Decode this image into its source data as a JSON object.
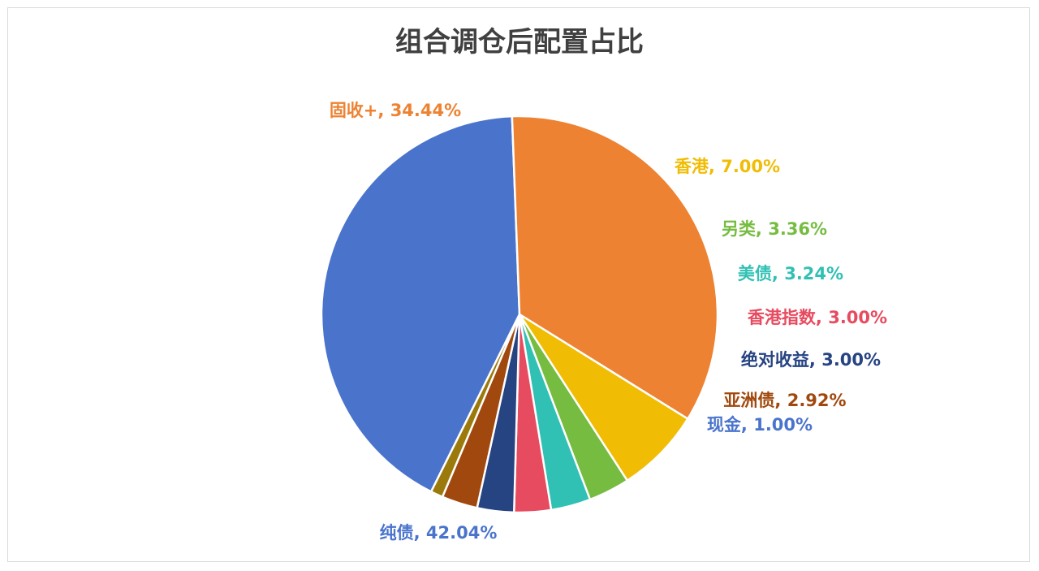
{
  "chart_data": {
    "type": "pie",
    "title": "组合调仓后配置占比",
    "slices": [
      {
        "name": "纯债",
        "value": 42.04,
        "label": "纯债, 42.04%",
        "color": "#4a74cc"
      },
      {
        "name": "固收+",
        "value": 34.44,
        "label": "固收+, 34.44%",
        "color": "#ed8232"
      },
      {
        "name": "香港",
        "value": 7.0,
        "label": "香港, 7.00%",
        "color": "#f0bc04"
      },
      {
        "name": "另类",
        "value": 3.36,
        "label": "另类, 3.36%",
        "color": "#76bc41"
      },
      {
        "name": "美债",
        "value": 3.24,
        "label": "美债, 3.24%",
        "color": "#31c0b4"
      },
      {
        "name": "香港指数",
        "value": 3.0,
        "label": "香港指数, 3.00%",
        "color": "#e74b60"
      },
      {
        "name": "绝对收益",
        "value": 3.0,
        "label": "绝对收益, 3.00%",
        "color": "#264382"
      },
      {
        "name": "亚洲债",
        "value": 2.92,
        "label": "亚洲债, 2.92%",
        "color": "#a0480d"
      },
      {
        "name": "现金",
        "value": 1.0,
        "label": "现金, 1.00%",
        "color": "#9b7a0b"
      }
    ],
    "label_colors": [
      "#4a74cc",
      "#ed8232",
      "#f0bc04",
      "#76bc41",
      "#31c0b4",
      "#e74b60",
      "#264382",
      "#a0480d",
      "#4a74cc"
    ]
  }
}
